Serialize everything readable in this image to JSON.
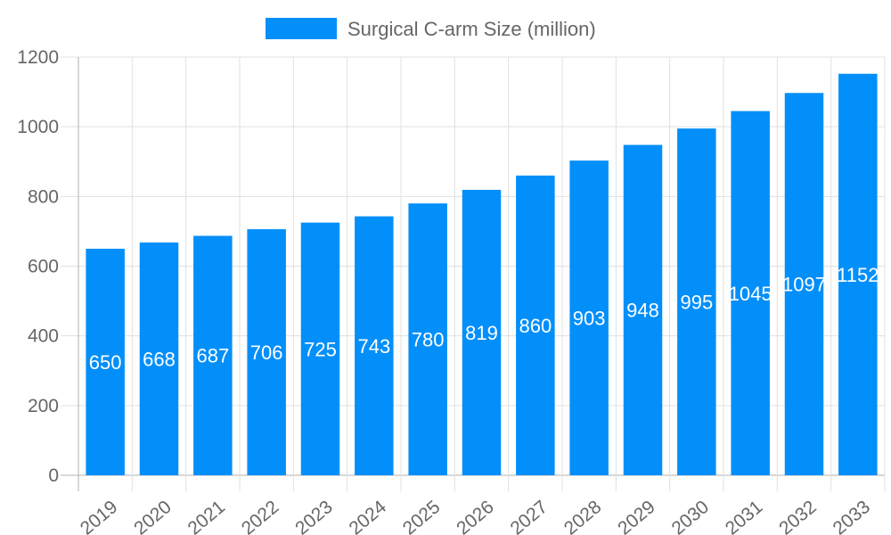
{
  "chart_data": {
    "type": "bar",
    "categories": [
      "2019",
      "2020",
      "2021",
      "2022",
      "2023",
      "2024",
      "2025",
      "2026",
      "2027",
      "2028",
      "2029",
      "2030",
      "2031",
      "2032",
      "2033"
    ],
    "series": [
      {
        "name": "Surgical C-arm Size (million)",
        "values": [
          650,
          668,
          687,
          706,
          725,
          743,
          780,
          819,
          860,
          903,
          948,
          995,
          1045,
          1097,
          1152
        ],
        "color": "#038ffa"
      }
    ],
    "ylim": [
      0,
      1200
    ],
    "yticks": [
      0,
      200,
      400,
      600,
      800,
      1000,
      1200
    ],
    "grid": true,
    "legend_position": "top",
    "data_labels": true
  }
}
